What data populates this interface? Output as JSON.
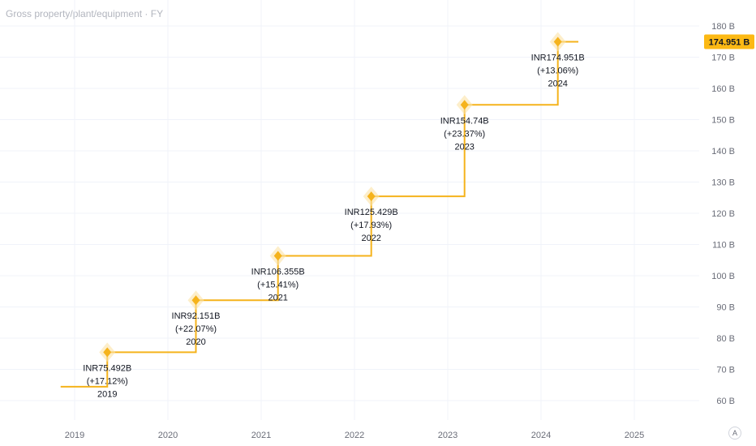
{
  "title": "Gross property/plant/equipment · FY",
  "scale_button": "A",
  "price_label": "174.951 B",
  "colors": {
    "line": "#f5b31c",
    "marker": "#f5b31c",
    "badge": "#fcb914",
    "grid": "#f0f3fa"
  },
  "chart_data": {
    "type": "line",
    "step": true,
    "title": "Gross property/plant/equipment · FY",
    "ylim": [
      55,
      180
    ],
    "yticks": [
      60,
      70,
      80,
      90,
      100,
      110,
      120,
      130,
      140,
      150,
      160,
      170,
      180
    ],
    "ytick_suffix": " B",
    "xlim": [
      2018.85,
      2025.95
    ],
    "xticks": [
      2019,
      2020,
      2021,
      2022,
      2023,
      2024,
      2025
    ],
    "start_value": 64.46,
    "points": [
      {
        "x": 2019.35,
        "y": 75.492,
        "label": "INR75.492B",
        "change": "(+17.12%)",
        "year": "2019"
      },
      {
        "x": 2020.3,
        "y": 92.151,
        "label": "INR92.151B",
        "change": "(+22.07%)",
        "year": "2020"
      },
      {
        "x": 2021.18,
        "y": 106.355,
        "label": "INR106.355B",
        "change": "(+15.41%)",
        "year": "2021"
      },
      {
        "x": 2022.18,
        "y": 125.429,
        "label": "INR125.429B",
        "change": "(+17.93%)",
        "year": "2022"
      },
      {
        "x": 2023.18,
        "y": 154.74,
        "label": "INR154.74B",
        "change": "(+23.37%)",
        "year": "2023"
      },
      {
        "x": 2024.18,
        "y": 174.951,
        "label": "INR174.951B",
        "change": "(+13.06%)",
        "year": "2024"
      }
    ],
    "end_x": 2024.4,
    "grid": true,
    "legend": "none"
  }
}
